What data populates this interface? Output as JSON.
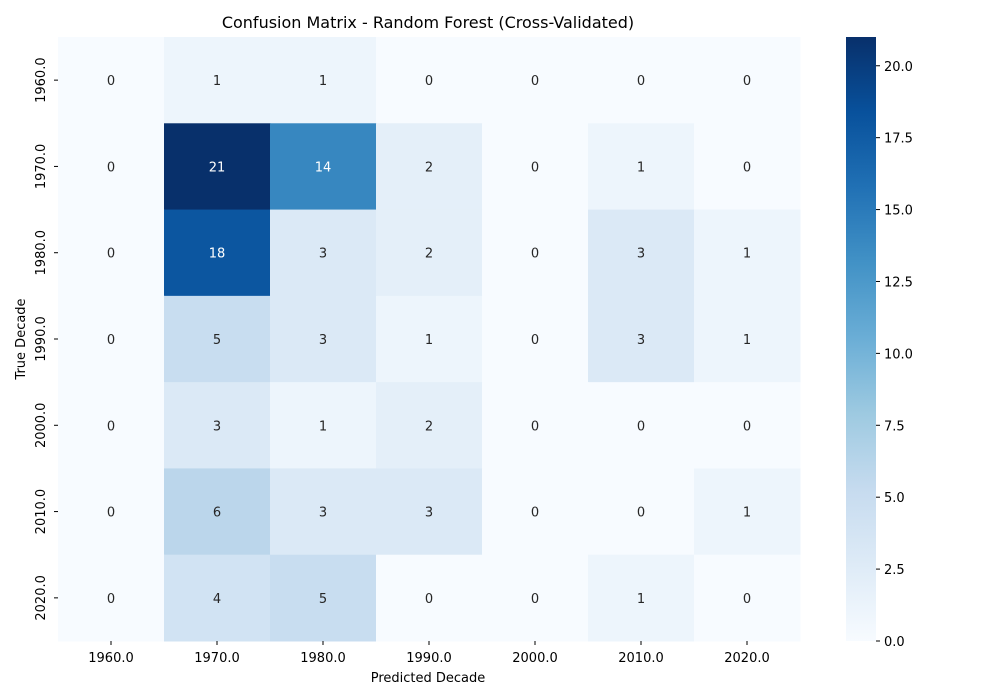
{
  "chart_data": {
    "type": "heatmap",
    "title": "Confusion Matrix - Random Forest (Cross-Validated)",
    "xlabel": "Predicted Decade",
    "ylabel": "True Decade",
    "x_categories": [
      "1960.0",
      "1970.0",
      "1980.0",
      "1990.0",
      "2000.0",
      "2010.0",
      "2020.0"
    ],
    "y_categories": [
      "1960.0",
      "1970.0",
      "1980.0",
      "1990.0",
      "2000.0",
      "2010.0",
      "2020.0"
    ],
    "matrix": [
      [
        0,
        1,
        1,
        0,
        0,
        0,
        0
      ],
      [
        0,
        21,
        14,
        2,
        0,
        1,
        0
      ],
      [
        0,
        18,
        3,
        2,
        0,
        3,
        1
      ],
      [
        0,
        5,
        3,
        1,
        0,
        3,
        1
      ],
      [
        0,
        3,
        1,
        2,
        0,
        0,
        0
      ],
      [
        0,
        6,
        3,
        3,
        0,
        0,
        1
      ],
      [
        0,
        4,
        5,
        0,
        0,
        1,
        0
      ]
    ],
    "colorbar": {
      "colormap": "Blues",
      "range": [
        0,
        21
      ],
      "ticks": [
        "0.0",
        "2.5",
        "5.0",
        "7.5",
        "10.0",
        "12.5",
        "15.0",
        "17.5",
        "20.0"
      ]
    }
  }
}
